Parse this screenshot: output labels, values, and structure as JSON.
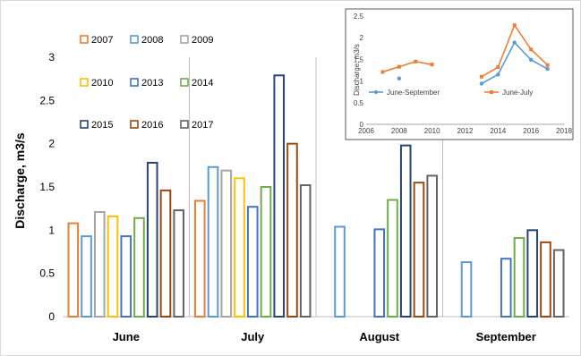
{
  "chart_data": [
    {
      "type": "bar",
      "title": "",
      "xlabel": "",
      "ylabel": "Discharge, m3/s",
      "ylim": [
        0,
        3
      ],
      "yticks": [
        "0",
        "0.5",
        "1",
        "1.5",
        "2",
        "2.5",
        "3"
      ],
      "categories": [
        "June",
        "July",
        "August",
        "September"
      ],
      "grid": "vertical separators between months",
      "legend_position": "top-left, inside plot, 3 columns",
      "series": [
        {
          "name": "2007",
          "color": "#ED7D31",
          "values": [
            1.08,
            1.34,
            null,
            null
          ]
        },
        {
          "name": "2008",
          "color": "#5B9BD5",
          "values": [
            0.93,
            1.73,
            1.04,
            0.63
          ]
        },
        {
          "name": "2009",
          "color": "#A5A5A5",
          "values": [
            1.21,
            1.69,
            null,
            null
          ]
        },
        {
          "name": "2010",
          "color": "#FFC000",
          "values": [
            1.16,
            1.6,
            null,
            null
          ]
        },
        {
          "name": "2013",
          "color": "#4472C4",
          "values": [
            0.93,
            1.27,
            1.01,
            0.67
          ]
        },
        {
          "name": "2014",
          "color": "#70AD47",
          "values": [
            1.14,
            1.5,
            1.35,
            0.91
          ]
        },
        {
          "name": "2015",
          "color": "#264478",
          "values": [
            1.78,
            2.79,
            1.98,
            1.0
          ]
        },
        {
          "name": "2016",
          "color": "#9E480E",
          "values": [
            1.46,
            2.0,
            1.55,
            0.86
          ]
        },
        {
          "name": "2017",
          "color": "#636363",
          "values": [
            1.23,
            1.52,
            1.63,
            0.77
          ]
        }
      ]
    },
    {
      "type": "line",
      "title": "",
      "xlabel": "",
      "ylabel": "Discharge, m3/s",
      "xlim": [
        2006,
        2018
      ],
      "ylim": [
        0,
        2.5
      ],
      "xticks": [
        "2006",
        "2008",
        "2010",
        "2012",
        "2014",
        "2016",
        "2018"
      ],
      "yticks": [
        "0",
        "0.5",
        "1",
        "1.5",
        "2",
        "2.5"
      ],
      "legend_position": "bottom, inside plot",
      "series": [
        {
          "name": "June-September",
          "color": "#5B9BD5",
          "points": [
            [
              2008,
              1.06
            ],
            [
              2013,
              0.94
            ],
            [
              2014,
              1.15
            ],
            [
              2015,
              1.89
            ],
            [
              2016,
              1.49
            ],
            [
              2017,
              1.28
            ]
          ],
          "segments": [
            [
              2013,
              2014,
              2015,
              2016,
              2017
            ]
          ]
        },
        {
          "name": "June-July",
          "color": "#ED7D31",
          "points": [
            [
              2007,
              1.21
            ],
            [
              2008,
              1.33
            ],
            [
              2009,
              1.45
            ],
            [
              2010,
              1.38
            ],
            [
              2013,
              1.1
            ],
            [
              2014,
              1.32
            ],
            [
              2015,
              2.29
            ],
            [
              2016,
              1.73
            ],
            [
              2017,
              1.37
            ]
          ],
          "segments": [
            [
              2007,
              2008,
              2009,
              2010
            ],
            [
              2013,
              2014,
              2015,
              2016,
              2017
            ]
          ]
        }
      ]
    }
  ]
}
